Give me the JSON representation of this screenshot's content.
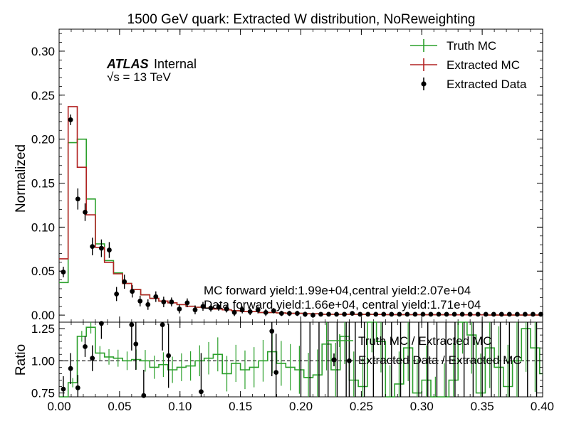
{
  "chart_data": {
    "type": "histogram-with-ratio",
    "title": "1500 GeV quark: Extracted W distribution, NoReweighting",
    "atlas_label": "ATLAS",
    "atlas_status": "Internal",
    "energy_label": "√s = 13 TeV",
    "colors": {
      "truth": "#2ca02c",
      "extracted_mc": "#b22222",
      "data": "#000000"
    },
    "bin_edges": [
      0.0,
      0.0075,
      0.015,
      0.0225,
      0.03,
      0.0375,
      0.045,
      0.0525,
      0.06,
      0.0675,
      0.075,
      0.0825,
      0.09,
      0.0975,
      0.105,
      0.1125,
      0.12,
      0.1275,
      0.135,
      0.1425,
      0.15,
      0.1575,
      0.165,
      0.1725,
      0.18,
      0.1875,
      0.195,
      0.2025,
      0.21,
      0.2175,
      0.225,
      0.2325,
      0.24,
      0.2475,
      0.255,
      0.2625,
      0.27,
      0.2775,
      0.285,
      0.2925,
      0.3,
      0.3075,
      0.315,
      0.3225,
      0.33,
      0.3375,
      0.345,
      0.3525,
      0.36,
      0.3675,
      0.375,
      0.3825,
      0.39,
      0.3975,
      0.405
    ],
    "main": {
      "ylabel": "Normalized",
      "ylim": [
        -0.008,
        0.325
      ],
      "yticks": [
        "0.00",
        "0.05",
        "0.10",
        "0.15",
        "0.20",
        "0.25",
        "0.30"
      ],
      "ytick_values": [
        0.0,
        0.05,
        0.1,
        0.15,
        0.2,
        0.25,
        0.3
      ],
      "series": [
        {
          "name": "Truth MC",
          "kind": "step",
          "values": [
            0.037,
            0.196,
            0.2,
            0.132,
            0.081,
            0.062,
            0.048,
            0.036,
            0.029,
            0.023,
            0.019,
            0.016,
            0.014,
            0.012,
            0.01,
            0.009,
            0.008,
            0.007,
            0.006,
            0.005,
            0.004,
            0.004,
            0.003,
            0.003,
            0.0025,
            0.002,
            0.002,
            0.0015,
            0.0015,
            0.001,
            0.001,
            0.001,
            0.001,
            0.0008,
            0.0008,
            0.0007,
            0.0006,
            0.0006,
            0.0005,
            0.0005,
            0.0004,
            0.0004,
            0.0004,
            0.0003,
            0.0003,
            0.0003,
            0.0003,
            0.0002,
            0.0002,
            0.0002,
            0.0002,
            0.0002,
            0.0002,
            0.0001
          ]
        },
        {
          "name": "Extracted MC",
          "kind": "step",
          "values": [
            0.064,
            0.237,
            0.168,
            0.114,
            0.077,
            0.06,
            0.047,
            0.036,
            0.029,
            0.023,
            0.019,
            0.016,
            0.014,
            0.012,
            0.01,
            0.009,
            0.008,
            0.007,
            0.006,
            0.005,
            0.004,
            0.004,
            0.003,
            0.003,
            0.0025,
            0.002,
            0.002,
            0.0015,
            0.0015,
            0.001,
            0.001,
            0.001,
            0.001,
            0.0008,
            0.0008,
            0.0007,
            0.0006,
            0.0006,
            0.0005,
            0.0005,
            0.0004,
            0.0004,
            0.0004,
            0.0003,
            0.0003,
            0.0003,
            0.0003,
            0.0002,
            0.0002,
            0.0002,
            0.0002,
            0.0002,
            0.0002,
            0.0001
          ]
        },
        {
          "name": "Extracted Data",
          "kind": "errorbar",
          "x": [
            0.0035,
            0.0095,
            0.0155,
            0.0215,
            0.0275,
            0.035,
            0.0415,
            0.0475,
            0.054,
            0.0605,
            0.067,
            0.0735,
            0.08,
            0.0865,
            0.093,
            0.0995,
            0.106,
            0.1125,
            0.119,
            0.1255,
            0.132,
            0.1385,
            0.145,
            0.1515,
            0.158,
            0.1645,
            0.171,
            0.1775,
            0.184,
            0.1905,
            0.197,
            0.2035,
            0.21,
            0.2165,
            0.223,
            0.2295,
            0.236,
            0.2425,
            0.249,
            0.2555,
            0.262,
            0.2685,
            0.275,
            0.2815,
            0.288,
            0.2945,
            0.301,
            0.3075,
            0.314,
            0.3205,
            0.327,
            0.3335,
            0.34,
            0.3465,
            0.353,
            0.3595,
            0.366,
            0.3725,
            0.379,
            0.3855,
            0.392,
            0.3985
          ],
          "y": [
            0.049,
            0.222,
            0.132,
            0.117,
            0.078,
            0.076,
            0.074,
            0.024,
            0.038,
            0.027,
            0.016,
            0.012,
            0.021,
            0.015,
            0.015,
            0.007,
            0.014,
            0.006,
            0.01,
            0.008,
            0.009,
            0.007,
            0.003,
            0.006,
            0.004,
            0.006,
            0.003,
            0.005,
            0.002,
            0.002,
            0.002,
            0.001,
            0.0,
            0.001,
            0.001,
            0.001,
            0.001,
            0.002,
            0.001,
            0.001,
            0.001,
            0.001,
            0.001,
            0.001,
            0.001,
            0.001,
            0.001,
            0.001,
            0.001,
            0.001,
            0.001,
            0.001,
            0.001,
            0.001,
            0.001,
            0.001,
            0.001,
            0.001,
            0.001,
            0.001,
            0.001,
            0.001
          ],
          "err": [
            0.006,
            0.006,
            0.012,
            0.01,
            0.01,
            0.01,
            0.009,
            0.008,
            0.008,
            0.007,
            0.006,
            0.006,
            0.006,
            0.006,
            0.005,
            0.005,
            0.005,
            0.005,
            0.005,
            0.004,
            0.004,
            0.004,
            0.004,
            0.004,
            0.004,
            0.004,
            0.004,
            0.003,
            0.003,
            0.003,
            0.003,
            0.003,
            0.003,
            0.002,
            0.002,
            0.002,
            0.002,
            0.002,
            0.002,
            0.002,
            0.002,
            0.002,
            0.002,
            0.002,
            0.002,
            0.002,
            0.002,
            0.002,
            0.002,
            0.002,
            0.002,
            0.002,
            0.002,
            0.002,
            0.002,
            0.002,
            0.002,
            0.002,
            0.002,
            0.002,
            0.002,
            0.002
          ]
        }
      ],
      "annotations": [
        "MC forward yield:1.99e+04,central yield:2.07e+04",
        "Data forward yield:1.66e+04, central yield:1.71e+04"
      ]
    },
    "ratio": {
      "ylabel": "Ratio",
      "ylim": [
        0.72,
        1.3
      ],
      "yticks": [
        "0.75",
        "1.00",
        "1.25"
      ],
      "ytick_values": [
        0.75,
        1.0,
        1.25
      ],
      "xlim": [
        0.0,
        0.4
      ],
      "xticks": [
        "0.00",
        "0.05",
        "0.10",
        "0.15",
        "0.20",
        "0.25",
        "0.30",
        "0.35",
        "0.40"
      ],
      "xtick_values": [
        0.0,
        0.05,
        0.1,
        0.15,
        0.2,
        0.25,
        0.3,
        0.35,
        0.4
      ],
      "legend": [
        "Truth MC / Extracted MC",
        "Extracted Data / Extracted MC"
      ],
      "truth_ratio_values": [
        0.58,
        0.83,
        1.19,
        1.26,
        1.06,
        1.03,
        1.02,
        1.0,
        1.01,
        1.0,
        0.95,
        0.97,
        0.93,
        0.95,
        0.96,
        1.0,
        1.02,
        1.05,
        0.9,
        0.98,
        0.93,
        0.95,
        1.0,
        1.07,
        0.98,
        0.95,
        0.93,
        0.87,
        0.89,
        1.13,
        0.93,
        1.19,
        0.85,
        0.8,
        1.3,
        1.15,
        0.72,
        0.82,
        1.1,
        0.75,
        0.85,
        0.6,
        0.7,
        0.85,
        1.35,
        1.2,
        0.75,
        1.1,
        0.95,
        0.8,
        1.0,
        1.25,
        1.1,
        0.9
      ],
      "data_ratio_x": [
        0.0035,
        0.0095,
        0.0155,
        0.0215,
        0.0275,
        0.035,
        0.06,
        0.0635,
        0.07,
        0.0855,
        0.0905,
        0.1175,
        0.176,
        0.1795,
        0.24
      ],
      "data_ratio_y": [
        0.78,
        0.94,
        0.79,
        1.11,
        1.02,
        1.29,
        1.28,
        1.13,
        0.73,
        1.28,
        1.04,
        0.76,
        1.23,
        0.91,
        1.0
      ],
      "data_ratio_err": [
        0.1,
        0.12,
        0.1,
        0.08,
        0.1,
        0.12,
        0.2,
        0.2,
        0.2,
        0.2,
        0.25,
        0.3,
        0.35,
        0.3,
        0.4
      ]
    }
  }
}
